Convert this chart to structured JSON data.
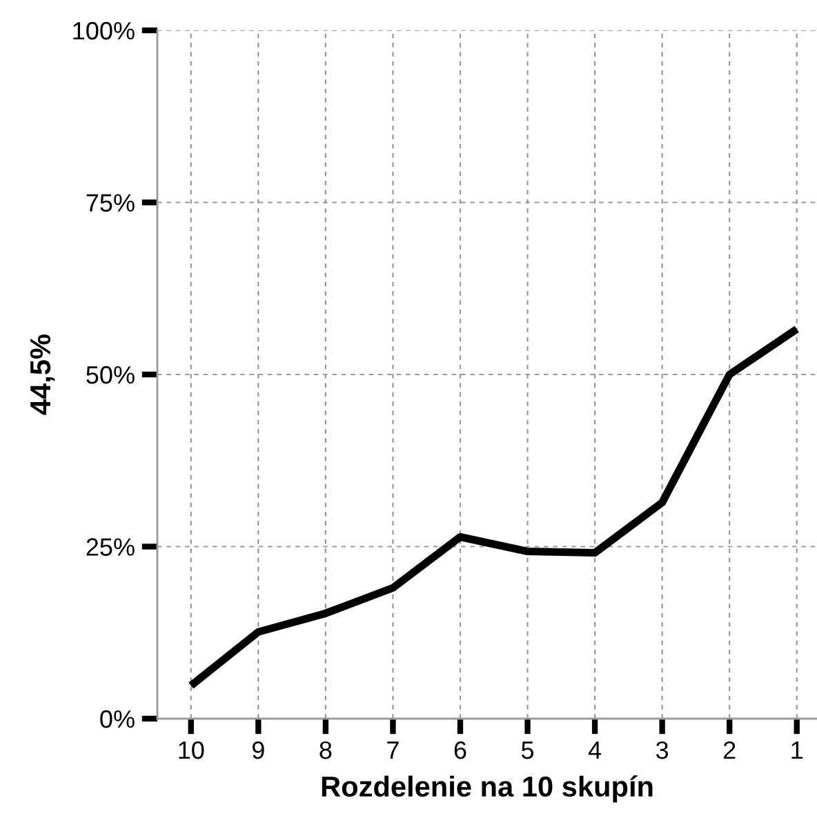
{
  "chart_data": {
    "type": "line",
    "xlabel": "Rozdelenie na 10 skupín",
    "ylabel": "44,5%",
    "categories": [
      "10",
      "9",
      "8",
      "7",
      "6",
      "5",
      "4",
      "3",
      "2",
      "1"
    ],
    "series": [
      {
        "color": "#000000",
        "values": [
          4.8,
          12.6,
          15.3,
          19.0,
          26.4,
          24.3,
          24.1,
          31.4,
          50.0,
          56.6
        ]
      }
    ],
    "ylim": [
      0,
      100
    ],
    "yticks": [
      {
        "value": 0,
        "label": "0%"
      },
      {
        "value": 25,
        "label": "25%"
      },
      {
        "value": 50,
        "label": "50%"
      },
      {
        "value": 75,
        "label": "75%"
      },
      {
        "value": 100,
        "label": "100%"
      }
    ],
    "grid": true,
    "marker": "none",
    "line_style": "solid"
  }
}
